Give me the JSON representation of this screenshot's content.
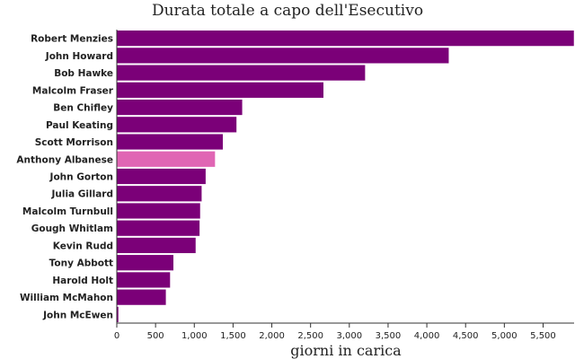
{
  "chart_data": {
    "type": "bar",
    "orientation": "horizontal",
    "title": "Durata totale a capo dell'Esecutivo",
    "xlabel": "giorni in carica",
    "ylabel": "",
    "xlim": [
      0,
      5900
    ],
    "xticks": [
      0,
      500,
      1000,
      1500,
      2000,
      2500,
      3000,
      3500,
      4000,
      4500,
      5000,
      5500
    ],
    "xtick_labels": [
      "0",
      "500",
      "1,000",
      "1,500",
      "2,000",
      "2,500",
      "3,000",
      "3,500",
      "4,000",
      "4,500",
      "5,000",
      "5,500"
    ],
    "categories": [
      "Robert Menzies",
      "John Howard",
      "Bob Hawke",
      "Malcolm Fraser",
      "Ben Chifley",
      "Paul Keating",
      "Scott Morrison",
      "Anthony Albanese",
      "John Gorton",
      "Julia Gillard",
      "Malcolm Turnbull",
      "Gough Whitlam",
      "Kevin Rudd",
      "Tony Abbott",
      "Harold Holt",
      "William McMahon",
      "John McEwen"
    ],
    "values": [
      5900,
      4285,
      3206,
      2669,
      1621,
      1547,
      1371,
      1270,
      1149,
      1097,
      1078,
      1071,
      1020,
      733,
      690,
      636,
      23
    ],
    "highlight": "Anthony Albanese",
    "colors": {
      "bar": "#7b0078",
      "highlight": "#e066b4"
    }
  }
}
